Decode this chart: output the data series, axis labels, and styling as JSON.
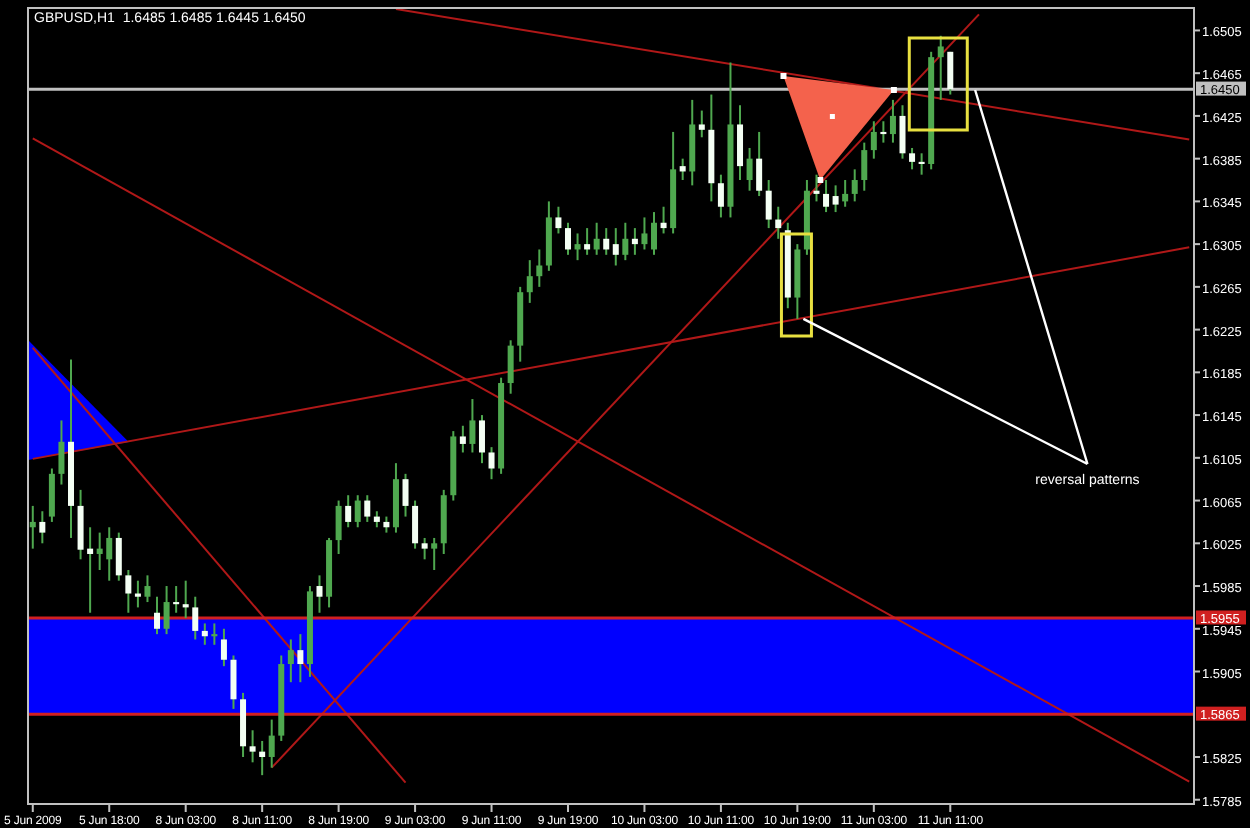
{
  "chart_data": {
    "type": "candlestick",
    "title": "GBPUSD,H1  1.6485 1.6485 1.6445 1.6450",
    "color": "#4fa84f",
    "colors": [
      "#4fa84f",
      "#f4fff4",
      "#4fa84f",
      "#4fa84f",
      "#f4fff4",
      "#f4fff4",
      "#f4fff4",
      "#4fa84f",
      "#4fa84f",
      "#f4fff4",
      "#f4fff4",
      "#f4fff4",
      "#4fa84f",
      "#f4fff4",
      "#4fa84f",
      "#f4fff4",
      "#f4fff4",
      "#f4fff4",
      "#f4fff4",
      "#4fa84f",
      "#f4fff4",
      "#f4fff4",
      "#f4fff4",
      "#f4fff4",
      "#f4fff4",
      "#4fa84f",
      "#4fa84f",
      "#4fa84f",
      "#f4fff4",
      "#4fa84f",
      "#f4fff4",
      "#4fa84f",
      "#4fa84f",
      "#f4fff4",
      "#4fa84f",
      "#f4fff4",
      "#f4fff4",
      "#f4fff4",
      "#4fa84f",
      "#f4fff4",
      "#f4fff4",
      "#f4fff4",
      "#4fa84f",
      "#4fa84f",
      "#4fa84f",
      "#f4fff4",
      "#4fa84f",
      "#f4fff4",
      "#f4fff4",
      "#4fa84f",
      "#4fa84f",
      "#4fa84f",
      "#4fa84f",
      "#4fa84f",
      "#4fa84f",
      "#f4fff4",
      "#f4fff4",
      "#4fa84f",
      "#f4fff4",
      "#4fa84f",
      "#f4fff4",
      "#f4fff4",
      "#4fa84f",
      "#f4fff4",
      "#4fa84f",
      "#4fa84f",
      "#f4fff4",
      "#4fa84f",
      "#f4fff4",
      "#4fa84f",
      "#f4fff4",
      "#f4fff4",
      "#f4fff4",
      "#4fa84f",
      "#f4fff4",
      "#4fa84f",
      "#f4fff4",
      "#f4fff4",
      "#f4fff4",
      "#f4fff4",
      "#4fa84f",
      "#4fa84f",
      "#f4fff4",
      "#f4fff4",
      "#f4fff4",
      "#4fa84f",
      "#4fa84f",
      "#4fa84f",
      "#4fa84f",
      "#f4fff4",
      "#4fa84f",
      "#f4fff4",
      "#f4fff4",
      "#f4fff4",
      "#4fa84f",
      "#4fa84f",
      "#f4fff4",
      null,
      null,
      null,
      null,
      null,
      null,
      null,
      null,
      null,
      null,
      null,
      null,
      null,
      null,
      null,
      null,
      null,
      null,
      null,
      null,
      null,
      null,
      null,
      null,
      null
    ],
    "categories": [
      "5 Jun 2009",
      null,
      null,
      null,
      null,
      null,
      null,
      null,
      "5 Jun 18:00",
      null,
      null,
      null,
      null,
      null,
      null,
      null,
      "8 Jun 03:00",
      null,
      null,
      null,
      null,
      null,
      null,
      null,
      "8 Jun 11:00",
      null,
      null,
      null,
      null,
      null,
      null,
      null,
      "8 Jun 19:00",
      null,
      null,
      null,
      null,
      null,
      null,
      null,
      "9 Jun 03:00",
      null,
      null,
      null,
      null,
      null,
      null,
      null,
      "9 Jun 11:00",
      null,
      null,
      null,
      null,
      null,
      null,
      null,
      "9 Jun 19:00",
      null,
      null,
      null,
      null,
      null,
      null,
      null,
      "10 Jun 03:00",
      null,
      null,
      null,
      null,
      null,
      null,
      null,
      "10 Jun 11:00",
      null,
      null,
      null,
      null,
      null,
      null,
      null,
      "10 Jun 19:00",
      null,
      null,
      null,
      null,
      null,
      null,
      null,
      "11 Jun 03:00",
      null,
      null,
      null,
      null,
      null,
      null,
      null,
      "11 Jun 11:00",
      null,
      null,
      null,
      null,
      null,
      null,
      null,
      null,
      null,
      null,
      null,
      null,
      null,
      null,
      null,
      null,
      null,
      null,
      null,
      null,
      null,
      null,
      null,
      null,
      null
    ],
    "ohlc": [
      [
        1.604,
        1.606,
        1.602,
        1.6045
      ],
      [
        1.6045,
        1.6055,
        1.6025,
        1.6035
      ],
      [
        1.605,
        1.6095,
        1.6045,
        1.609
      ],
      [
        1.609,
        1.614,
        1.608,
        1.612
      ],
      [
        1.612,
        1.6197,
        1.603,
        1.606
      ],
      [
        1.606,
        1.6075,
        1.601,
        1.6019
      ],
      [
        1.602,
        1.604,
        1.596,
        1.6015
      ],
      [
        1.6015,
        1.6035,
        1.6,
        1.602
      ],
      [
        1.601,
        1.604,
        1.599,
        1.603
      ],
      [
        1.603,
        1.6035,
        1.599,
        1.5995
      ],
      [
        1.5995,
        1.6,
        1.596,
        1.5978
      ],
      [
        1.5978,
        1.599,
        1.5965,
        1.5975
      ],
      [
        1.5975,
        1.5995,
        1.597,
        1.5985
      ],
      [
        1.596,
        1.5975,
        1.594,
        1.5945
      ],
      [
        1.5945,
        1.5985,
        1.594,
        1.597
      ],
      [
        1.597,
        1.5985,
        1.596,
        1.5968
      ],
      [
        1.5968,
        1.599,
        1.5955,
        1.5965
      ],
      [
        1.5965,
        1.5975,
        1.5935,
        1.5943
      ],
      [
        1.5943,
        1.595,
        1.593,
        1.5938
      ],
      [
        1.5938,
        1.595,
        1.593,
        1.594
      ],
      [
        1.5935,
        1.5945,
        1.591,
        1.5916
      ],
      [
        1.5916,
        1.592,
        1.587,
        1.5879
      ],
      [
        1.5879,
        1.5885,
        1.5825,
        1.5835
      ],
      [
        1.5835,
        1.585,
        1.582,
        1.583
      ],
      [
        1.583,
        1.584,
        1.5808,
        1.5825
      ],
      [
        1.5825,
        1.586,
        1.5815,
        1.5845
      ],
      [
        1.5845,
        1.592,
        1.584,
        1.5912
      ],
      [
        1.5912,
        1.5935,
        1.5895,
        1.5925
      ],
      [
        1.5925,
        1.594,
        1.5895,
        1.5912
      ],
      [
        1.5912,
        1.5985,
        1.59,
        1.598
      ],
      [
        1.5985,
        1.5995,
        1.596,
        1.5975
      ],
      [
        1.5975,
        1.603,
        1.5965,
        1.6028
      ],
      [
        1.6028,
        1.6065,
        1.6015,
        1.606
      ],
      [
        1.606,
        1.607,
        1.604,
        1.6045
      ],
      [
        1.6045,
        1.607,
        1.604,
        1.6065
      ],
      [
        1.6065,
        1.607,
        1.6045,
        1.605
      ],
      [
        1.605,
        1.6055,
        1.604,
        1.6045
      ],
      [
        1.6045,
        1.605,
        1.6035,
        1.604
      ],
      [
        1.604,
        1.61,
        1.6035,
        1.6085
      ],
      [
        1.6085,
        1.609,
        1.605,
        1.606
      ],
      [
        1.606,
        1.6065,
        1.602,
        1.6025
      ],
      [
        1.6025,
        1.603,
        1.601,
        1.602
      ],
      [
        1.602,
        1.603,
        1.6,
        1.6025
      ],
      [
        1.6025,
        1.6075,
        1.6015,
        1.607
      ],
      [
        1.607,
        1.613,
        1.6065,
        1.6125
      ],
      [
        1.6125,
        1.6135,
        1.611,
        1.6118
      ],
      [
        1.6118,
        1.616,
        1.611,
        1.614
      ],
      [
        1.614,
        1.6145,
        1.61,
        1.611
      ],
      [
        1.611,
        1.6115,
        1.6085,
        1.6095
      ],
      [
        1.6095,
        1.618,
        1.609,
        1.6175
      ],
      [
        1.6175,
        1.6215,
        1.6165,
        1.621
      ],
      [
        1.621,
        1.6265,
        1.6195,
        1.626
      ],
      [
        1.626,
        1.629,
        1.625,
        1.6275
      ],
      [
        1.6275,
        1.63,
        1.6265,
        1.6285
      ],
      [
        1.6285,
        1.6345,
        1.628,
        1.633
      ],
      [
        1.633,
        1.634,
        1.6315,
        1.632
      ],
      [
        1.632,
        1.6325,
        1.6295,
        1.63
      ],
      [
        1.63,
        1.6315,
        1.629,
        1.6305
      ],
      [
        1.6305,
        1.632,
        1.6295,
        1.63
      ],
      [
        1.63,
        1.6325,
        1.6295,
        1.631
      ],
      [
        1.631,
        1.632,
        1.6295,
        1.63
      ],
      [
        1.6305,
        1.632,
        1.6285,
        1.6295
      ],
      [
        1.6295,
        1.6325,
        1.629,
        1.631
      ],
      [
        1.631,
        1.632,
        1.6295,
        1.6305
      ],
      [
        1.6305,
        1.633,
        1.63,
        1.6315
      ],
      [
        1.63,
        1.6335,
        1.6295,
        1.6325
      ],
      [
        1.6325,
        1.634,
        1.6315,
        1.632
      ],
      [
        1.632,
        1.641,
        1.6315,
        1.6375
      ],
      [
        1.6378,
        1.6385,
        1.6365,
        1.6373
      ],
      [
        1.6373,
        1.644,
        1.636,
        1.6417
      ],
      [
        1.6417,
        1.643,
        1.6405,
        1.6412
      ],
      [
        1.6412,
        1.6445,
        1.6345,
        1.6362
      ],
      [
        1.6362,
        1.637,
        1.633,
        1.634
      ],
      [
        1.634,
        1.6475,
        1.633,
        1.6417
      ],
      [
        1.6417,
        1.6435,
        1.6365,
        1.6378
      ],
      [
        1.6365,
        1.6395,
        1.6355,
        1.6385
      ],
      [
        1.6385,
        1.641,
        1.635,
        1.6355
      ],
      [
        1.6355,
        1.6365,
        1.632,
        1.6328
      ],
      [
        1.6328,
        1.634,
        1.631,
        1.632
      ],
      [
        1.6318,
        1.6325,
        1.6245,
        1.6255
      ],
      [
        1.6255,
        1.6305,
        1.6235,
        1.63
      ],
      [
        1.63,
        1.6365,
        1.6295,
        1.6355
      ],
      [
        1.6355,
        1.637,
        1.6345,
        1.6352
      ],
      [
        1.6352,
        1.6365,
        1.6335,
        1.634
      ],
      [
        1.635,
        1.636,
        1.6335,
        1.6342
      ],
      [
        1.6345,
        1.6365,
        1.634,
        1.6352
      ],
      [
        1.6352,
        1.6375,
        1.6345,
        1.6365
      ],
      [
        1.6365,
        1.64,
        1.6355,
        1.6393
      ],
      [
        1.6393,
        1.642,
        1.6385,
        1.641
      ],
      [
        1.641,
        1.642,
        1.64,
        1.6408
      ],
      [
        1.6408,
        1.644,
        1.64,
        1.6425
      ],
      [
        1.6425,
        1.6435,
        1.6385,
        1.639
      ],
      [
        1.639,
        1.6395,
        1.6375,
        1.6382
      ],
      [
        1.6382,
        1.639,
        1.637,
        1.638
      ],
      [
        1.638,
        1.6485,
        1.6375,
        1.648
      ],
      [
        1.648,
        1.65,
        1.644,
        1.649
      ],
      [
        1.6485,
        1.6485,
        1.6445,
        1.645
      ],
      null,
      null,
      null,
      null,
      null,
      null,
      null,
      null,
      null,
      null,
      null,
      null,
      null,
      null,
      null,
      null,
      null,
      null,
      null,
      null,
      null,
      null,
      null,
      null,
      null
    ],
    "series": [
      {
        "type": "line",
        "color": "#b01818",
        "values": [
          null,
          null,
          null,
          null,
          null,
          null,
          null,
          null,
          null,
          null,
          null,
          null,
          null,
          null,
          null,
          null,
          null,
          null,
          null,
          null,
          null,
          null,
          null,
          null,
          null,
          null,
          null,
          null,
          null,
          null,
          null,
          null,
          null,
          null,
          null,
          null,
          null,
          null,
          1.6525,
          null,
          null,
          null,
          null,
          null,
          null,
          null,
          null,
          null,
          null,
          null,
          null,
          null,
          null,
          null,
          null,
          null,
          null,
          null,
          null,
          null,
          null,
          null,
          null,
          null,
          null,
          null,
          null,
          null,
          null,
          null,
          null,
          null,
          null,
          null,
          null,
          null,
          null,
          null,
          null,
          null,
          null,
          null,
          null,
          null,
          null,
          null,
          null,
          null,
          null,
          null,
          null,
          null,
          null,
          null,
          null,
          null,
          null,
          null,
          null,
          null,
          null,
          null,
          null,
          null,
          null,
          null,
          null,
          null,
          null,
          null,
          null,
          null,
          null,
          null,
          null,
          null,
          null,
          null,
          null,
          null,
          null,
          1.6403
        ]
      },
      {
        "type": "line",
        "color": "#b01818",
        "values": [
          1.6404,
          null,
          null,
          null,
          null,
          null,
          null,
          null,
          null,
          null,
          null,
          null,
          null,
          null,
          null,
          null,
          null,
          null,
          null,
          null,
          null,
          null,
          null,
          null,
          null,
          null,
          null,
          null,
          null,
          null,
          null,
          null,
          null,
          null,
          null,
          null,
          null,
          null,
          null,
          null,
          null,
          null,
          null,
          null,
          null,
          null,
          null,
          null,
          null,
          null,
          null,
          null,
          null,
          null,
          null,
          null,
          null,
          null,
          null,
          null,
          null,
          null,
          null,
          null,
          null,
          null,
          null,
          null,
          null,
          null,
          null,
          null,
          null,
          null,
          null,
          null,
          null,
          null,
          null,
          null,
          null,
          null,
          null,
          null,
          null,
          null,
          null,
          null,
          null,
          null,
          null,
          null,
          null,
          null,
          null,
          null,
          null,
          null,
          null,
          null,
          null,
          null,
          null,
          null,
          null,
          null,
          null,
          null,
          null,
          null,
          null,
          null,
          null,
          null,
          null,
          null,
          null,
          null,
          null,
          null,
          null,
          1.5802
        ]
      },
      {
        "type": "line",
        "color": "#b01818",
        "values": [
          1.6104,
          null,
          null,
          null,
          null,
          null,
          null,
          null,
          null,
          null,
          null,
          null,
          null,
          null,
          null,
          null,
          null,
          null,
          null,
          null,
          null,
          null,
          null,
          null,
          null,
          null,
          null,
          null,
          null,
          null,
          null,
          null,
          null,
          null,
          null,
          null,
          null,
          null,
          null,
          null,
          null,
          null,
          null,
          null,
          null,
          null,
          null,
          null,
          null,
          null,
          null,
          null,
          null,
          null,
          null,
          null,
          null,
          null,
          null,
          null,
          null,
          null,
          null,
          null,
          null,
          null,
          null,
          null,
          null,
          null,
          null,
          null,
          null,
          null,
          null,
          null,
          null,
          null,
          null,
          null,
          null,
          null,
          null,
          null,
          null,
          null,
          null,
          null,
          null,
          null,
          null,
          null,
          null,
          null,
          null,
          null,
          null,
          null,
          null,
          null,
          null,
          null,
          null,
          null,
          null,
          null,
          null,
          null,
          null,
          null,
          null,
          null,
          null,
          null,
          null,
          null,
          null,
          null,
          null,
          null,
          null,
          1.6302
        ]
      },
      {
        "type": "line",
        "color": "#b01818",
        "values": [
          null,
          null,
          null,
          null,
          null,
          null,
          null,
          null,
          null,
          null,
          null,
          null,
          null,
          null,
          null,
          null,
          null,
          null,
          null,
          null,
          null,
          null,
          null,
          null,
          null,
          1.5815,
          null,
          null,
          null,
          null,
          null,
          null,
          null,
          null,
          null,
          null,
          null,
          null,
          null,
          null,
          null,
          null,
          null,
          null,
          null,
          null,
          null,
          null,
          null,
          null,
          null,
          null,
          null,
          null,
          null,
          null,
          null,
          null,
          null,
          null,
          null,
          null,
          null,
          null,
          null,
          null,
          null,
          null,
          null,
          null,
          null,
          null,
          null,
          null,
          null,
          null,
          null,
          null,
          null,
          null,
          null,
          null,
          null,
          null,
          null,
          null,
          null,
          null,
          null,
          null,
          null,
          null,
          null,
          null,
          null,
          null,
          null,
          null,
          null,
          1.652,
          null,
          null,
          null,
          null,
          null,
          null,
          null,
          null,
          null,
          null,
          null,
          null,
          null,
          null,
          null,
          null,
          null,
          null,
          null,
          null,
          null,
          null
        ]
      },
      {
        "type": "line",
        "color": "#b01818",
        "values": [
          1.6208,
          null,
          null,
          null,
          null,
          null,
          null,
          null,
          null,
          null,
          null,
          null,
          null,
          null,
          null,
          null,
          null,
          null,
          null,
          null,
          null,
          null,
          null,
          null,
          null,
          null,
          null,
          null,
          null,
          null,
          null,
          null,
          null,
          null,
          null,
          null,
          null,
          null,
          null,
          1.5801,
          null,
          null,
          null,
          null,
          null,
          null,
          null,
          null,
          null,
          null,
          null,
          null,
          null,
          null,
          null,
          null,
          null,
          null,
          null,
          null,
          null,
          null,
          null,
          null,
          null,
          null,
          null,
          null,
          null,
          null,
          null,
          null,
          null,
          null,
          null,
          null,
          null,
          null,
          null,
          null,
          null,
          null,
          null,
          null,
          null,
          null,
          null,
          null,
          null,
          null,
          null,
          null,
          null,
          null,
          null,
          null,
          null,
          null,
          null,
          null,
          null,
          null,
          null,
          null,
          null,
          null,
          null,
          null,
          null,
          null,
          null,
          null,
          null,
          null,
          null,
          null,
          null,
          null,
          null,
          null,
          null,
          null
        ]
      }
    ],
    "ylim": [
      1.5781,
      1.6526
    ],
    "yticks": [
      1.5785,
      1.5825,
      1.5905,
      1.5945,
      1.5985,
      1.6025,
      1.6065,
      1.6105,
      1.6145,
      1.6185,
      1.6225,
      1.6265,
      1.6305,
      1.6345,
      1.6385,
      1.6425,
      1.6465,
      1.6505
    ],
    "bands": [
      {
        "axis": "y",
        "from": 1.5865,
        "to": 1.5955,
        "color": "#0000ff"
      }
    ],
    "ref_lines": [
      {
        "axis": "y",
        "value": 1.645,
        "label": "1.6450",
        "color": "#c0c0c0"
      },
      {
        "axis": "y",
        "value": 1.5955,
        "label": "1.5955",
        "color": "#d02020"
      },
      {
        "axis": "y",
        "value": 1.5865,
        "label": "1.5865",
        "color": "#d02020"
      }
    ],
    "annotations": [
      {
        "text": "reversal patterns",
        "x": "10 Jun 19:00",
        "y": 1.6235
      }
    ]
  }
}
